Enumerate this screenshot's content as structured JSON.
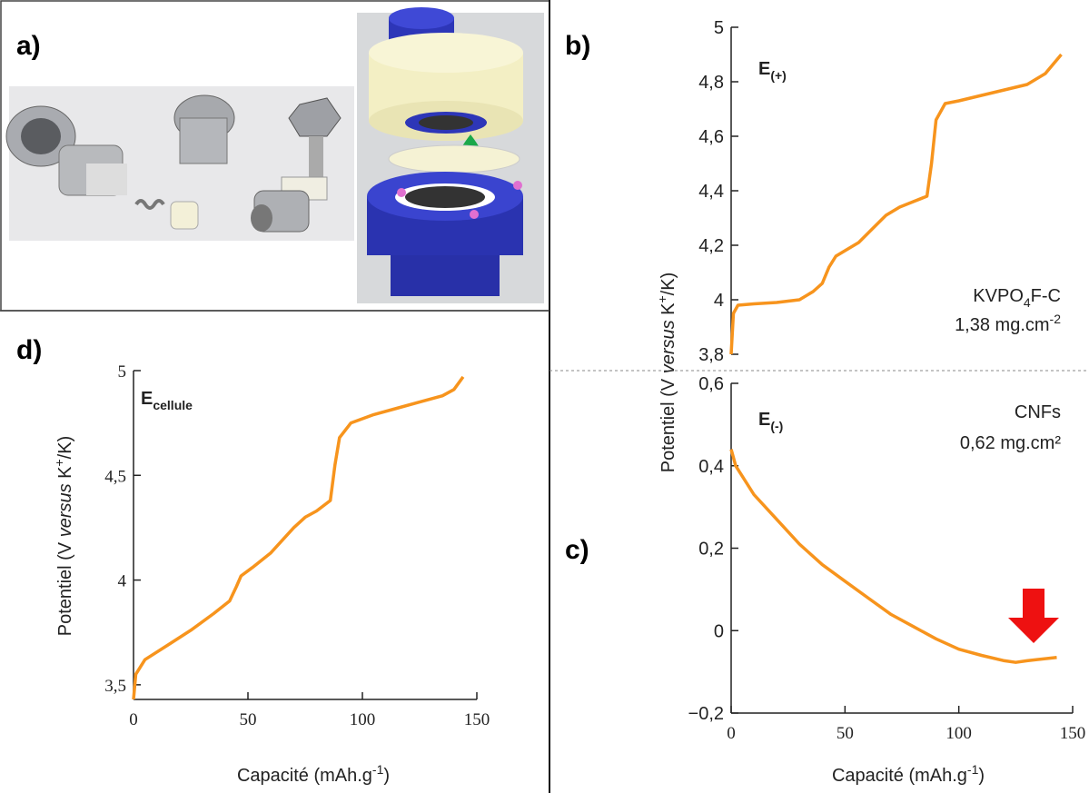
{
  "panel_labels": [
    "a)",
    "b)",
    "c)",
    "d)"
  ],
  "chart_data": [
    {
      "type": "line",
      "color": "#f7941d",
      "x": [
        0,
        1,
        3,
        10,
        20,
        30,
        36,
        40,
        43,
        46,
        50,
        56,
        62,
        68,
        74,
        80,
        86,
        88,
        90,
        94,
        100,
        110,
        120,
        130,
        138,
        145
      ],
      "values": [
        3.8,
        3.95,
        3.98,
        3.985,
        3.99,
        4.0,
        4.03,
        4.06,
        4.12,
        4.16,
        4.18,
        4.21,
        4.26,
        4.31,
        4.34,
        4.36,
        4.38,
        4.5,
        4.66,
        4.72,
        4.73,
        4.75,
        4.77,
        4.79,
        4.83,
        4.9
      ],
      "xlim": [
        0,
        150
      ],
      "ylim": [
        3.8,
        5
      ],
      "yticks": [
        {
          "value": 3.8,
          "label": "3,8"
        },
        4,
        {
          "value": 4.2,
          "label": "4,2"
        },
        {
          "value": 4.4,
          "label": "4,4"
        },
        {
          "value": 4.6,
          "label": "4,6"
        },
        {
          "value": 4.8,
          "label": "4,8"
        },
        5
      ],
      "ylabel": [
        {
          "text": "Potentiel (V "
        },
        {
          "text": "versus",
          "style": "i"
        },
        {
          "text": " K"
        },
        {
          "text": "+",
          "style": "sup"
        },
        {
          "text": "/K)"
        }
      ],
      "annotations": [
        {
          "bold": true,
          "parts": [
            {
              "text": "E"
            },
            {
              "text": "(+)",
              "style": "sub"
            }
          ]
        },
        {
          "parts": [
            {
              "text": "KVPO"
            },
            {
              "text": "4",
              "style": "sub"
            },
            {
              "text": "F-C"
            }
          ]
        },
        {
          "parts": [
            {
              "text": "1,38 mg.cm"
            },
            {
              "text": "-2",
              "style": "sup"
            }
          ]
        }
      ]
    },
    {
      "type": "line",
      "color": "#f7941d",
      "x": [
        0,
        2,
        10,
        20,
        30,
        40,
        50,
        60,
        70,
        80,
        90,
        100,
        110,
        120,
        125,
        130,
        143
      ],
      "values": [
        0.44,
        0.4,
        0.33,
        0.27,
        0.21,
        0.16,
        0.12,
        0.08,
        0.04,
        0.01,
        -0.02,
        -0.045,
        -0.06,
        -0.073,
        -0.077,
        -0.073,
        -0.065
      ],
      "xlim": [
        0,
        150
      ],
      "ylim": [
        -0.2,
        0.6
      ],
      "xticks": [
        0,
        50,
        100,
        150
      ],
      "yticks": [
        {
          "value": -0.2,
          "label": "−0,2"
        },
        0,
        {
          "value": 0.2,
          "label": "0,2"
        },
        {
          "value": 0.4,
          "label": "0,4"
        },
        {
          "value": 0.6,
          "label": "0,6"
        }
      ],
      "xlabel": [
        {
          "text": "Capacité (mAh.g"
        },
        {
          "text": "-1",
          "style": "sup"
        },
        {
          "text": ")"
        }
      ],
      "annotations": [
        {
          "bold": true,
          "parts": [
            {
              "text": "E"
            },
            {
              "text": "(-)",
              "style": "sub"
            }
          ]
        },
        {
          "parts": [
            {
              "text": "CNFs"
            }
          ]
        },
        {
          "parts": [
            {
              "text": "0,62 mg.cm²"
            }
          ]
        }
      ]
    },
    {
      "type": "line",
      "color": "#f7941d",
      "x": [
        0,
        1,
        5,
        15,
        25,
        35,
        42,
        45,
        47,
        52,
        60,
        70,
        75,
        80,
        86,
        88,
        90,
        95,
        105,
        115,
        125,
        135,
        140,
        144
      ],
      "values": [
        3.43,
        3.55,
        3.62,
        3.69,
        3.76,
        3.84,
        3.9,
        3.97,
        4.02,
        4.06,
        4.13,
        4.25,
        4.3,
        4.33,
        4.38,
        4.55,
        4.68,
        4.75,
        4.79,
        4.82,
        4.85,
        4.88,
        4.91,
        4.97
      ],
      "xlim": [
        0,
        150
      ],
      "ylim": [
        3.43,
        5
      ],
      "xticks": [
        0,
        50,
        100,
        150
      ],
      "yticks": [
        {
          "value": 3.5,
          "label": "3,5"
        },
        4,
        {
          "value": 4.5,
          "label": "4,5"
        },
        5
      ],
      "xlabel": [
        {
          "text": "Capacité (mAh.g"
        },
        {
          "text": "-1",
          "style": "sup"
        },
        {
          "text": ")"
        }
      ],
      "ylabel": [
        {
          "text": "Potentiel (V "
        },
        {
          "text": "versus",
          "style": "i"
        },
        {
          "text": " K"
        },
        {
          "text": "+",
          "style": "sup"
        },
        {
          "text": "/K)"
        }
      ],
      "annotations": [
        {
          "bold": true,
          "parts": [
            {
              "text": "E"
            },
            {
              "text": "cellule",
              "style": "sub"
            }
          ]
        }
      ]
    }
  ]
}
